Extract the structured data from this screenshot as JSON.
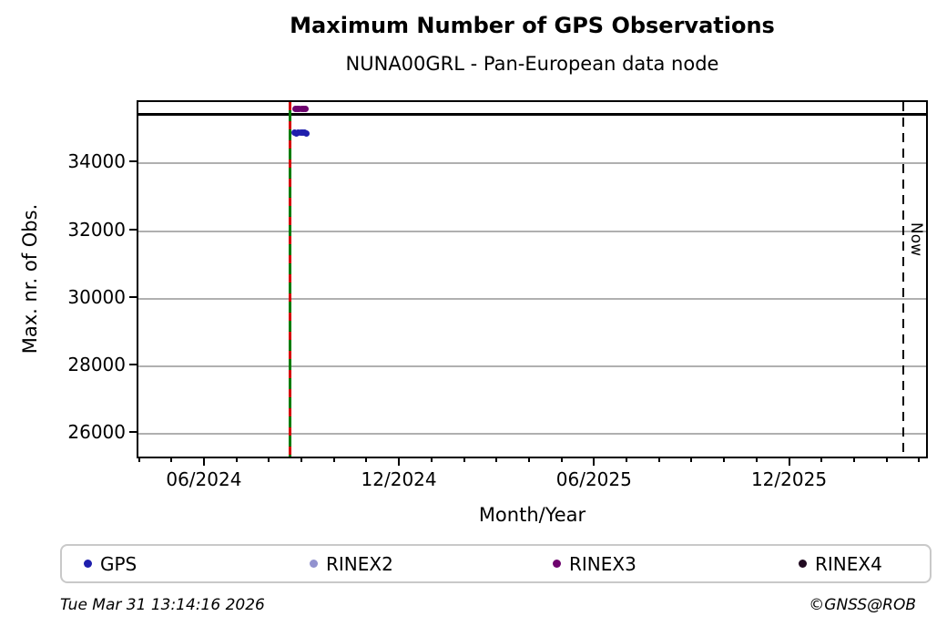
{
  "footer": {
    "timestamp": "Tue Mar 31 13:14:16 2026",
    "credit": "©GNSS@ROB"
  },
  "chart_data": {
    "type": "scatter",
    "title": "Maximum Number of GPS Observations",
    "subtitle": "NUNA00GRL - Pan-European data node",
    "xlabel": "Month/Year",
    "ylabel": "Max. nr. of Obs.",
    "ylim": [
      25220,
      35815
    ],
    "xlim": [
      "2024-03-27",
      "2026-04-08"
    ],
    "grid": "horizontal-gridlines-only",
    "gridline_color": "#b0b0b0",
    "y_ticks": [
      26000,
      28000,
      30000,
      32000,
      34000
    ],
    "x_major_ticks": [
      "06/2024",
      "12/2024",
      "06/2025",
      "12/2025"
    ],
    "x_minor_tick_interval": "1 month",
    "series": [
      {
        "name": "GPS",
        "color": "#1f1fad",
        "points": [
          {
            "date": "2024-08-23",
            "value": 34900
          },
          {
            "date": "2024-08-25",
            "value": 34895
          },
          {
            "date": "2024-08-27",
            "value": 34905
          },
          {
            "date": "2024-08-29",
            "value": 34900
          },
          {
            "date": "2024-08-31",
            "value": 34900
          },
          {
            "date": "2024-09-02",
            "value": 34905
          },
          {
            "date": "2024-09-04",
            "value": 34895
          }
        ]
      },
      {
        "name": "RINEX2",
        "color": "#9292cf",
        "points": []
      },
      {
        "name": "RINEX3",
        "color": "#6e046e",
        "points": [
          {
            "date": "2024-08-24",
            "value": 35610
          },
          {
            "date": "2024-08-26",
            "value": 35610
          },
          {
            "date": "2024-08-28",
            "value": 35610
          },
          {
            "date": "2024-08-30",
            "value": 35610
          },
          {
            "date": "2024-09-01",
            "value": 35610
          },
          {
            "date": "2024-09-03",
            "value": 35610
          }
        ]
      },
      {
        "name": "RINEX4",
        "color": "#210b21",
        "points": []
      }
    ],
    "annotations": {
      "max_line": {
        "type": "hline",
        "value": 35440,
        "color": "#000000",
        "style": "solid"
      },
      "event_line": {
        "type": "vline",
        "date": "2024-08-19",
        "colors": [
          "#007c00",
          "#d40000"
        ],
        "style": "solid green with dashed red overlay"
      },
      "now_line": {
        "type": "vline",
        "approx_date": "2026-03-15",
        "label": "Now",
        "color": "#000000",
        "style": "dashed"
      }
    },
    "legend": {
      "position": "bottom",
      "entries": [
        "GPS",
        "RINEX2",
        "RINEX3",
        "RINEX4"
      ]
    }
  }
}
